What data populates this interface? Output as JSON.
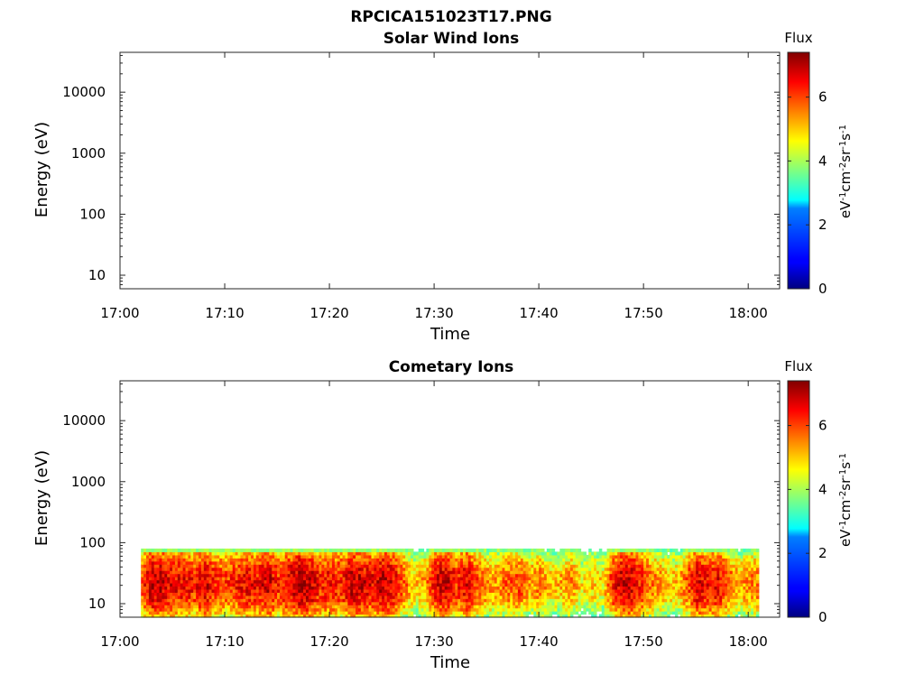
{
  "figure_title": "RPCICA151023T17.PNG",
  "chart_data": [
    {
      "type": "heatmap",
      "title": "Solar Wind Ions",
      "xlabel": "Time",
      "ylabel": "Energy (eV)",
      "x_ticks": [
        "17:00",
        "17:10",
        "17:20",
        "17:30",
        "17:40",
        "17:50",
        "18:00"
      ],
      "x_range": [
        "17:00",
        "18:03"
      ],
      "y_ticks": [
        "10",
        "100",
        "1000",
        "10000"
      ],
      "y_scale": "log",
      "y_range": [
        6,
        45000
      ],
      "colorbar": {
        "title": "Flux",
        "label": "eV-1cm-2sr-1s-1",
        "ticks": [
          "0",
          "2",
          "4",
          "6"
        ],
        "range": [
          0,
          7.4
        ]
      },
      "data": []
    },
    {
      "type": "heatmap",
      "title": "Cometary Ions",
      "xlabel": "Time",
      "ylabel": "Energy (eV)",
      "x_ticks": [
        "17:00",
        "17:10",
        "17:20",
        "17:30",
        "17:40",
        "17:50",
        "18:00"
      ],
      "x_range": [
        "17:00",
        "18:03"
      ],
      "y_ticks": [
        "10",
        "100",
        "1000",
        "10000"
      ],
      "y_scale": "log",
      "y_range": [
        6,
        45000
      ],
      "colorbar": {
        "title": "Flux",
        "label": "eV-1cm-2sr-1s-1",
        "ticks": [
          "0",
          "2",
          "4",
          "6"
        ],
        "range": [
          0,
          7.4
        ]
      },
      "data_time_range": [
        "17:02",
        "18:01"
      ],
      "data_energy_range_eV": [
        6,
        80
      ],
      "flux_profile": {
        "times": [
          "17:02",
          "17:03",
          "17:04",
          "17:05",
          "17:06",
          "17:07",
          "17:08",
          "17:09",
          "17:10",
          "17:11",
          "17:12",
          "17:13",
          "17:14",
          "17:15",
          "17:16",
          "17:17",
          "17:18",
          "17:19",
          "17:20",
          "17:21",
          "17:22",
          "17:23",
          "17:24",
          "17:25",
          "17:26",
          "17:27",
          "17:28",
          "17:29",
          "17:30",
          "17:31",
          "17:32",
          "17:33",
          "17:34",
          "17:35",
          "17:36",
          "17:37",
          "17:38",
          "17:39",
          "17:40",
          "17:41",
          "17:42",
          "17:43",
          "17:44",
          "17:45",
          "17:46",
          "17:47",
          "17:48",
          "17:49",
          "17:50",
          "17:51",
          "17:52",
          "17:53",
          "17:54",
          "17:55",
          "17:56",
          "17:57",
          "17:58",
          "17:59",
          "18:00",
          "18:01"
        ],
        "peak_flux": [
          6.0,
          7.0,
          6.8,
          6.5,
          6.6,
          6.3,
          6.8,
          6.2,
          6.0,
          6.3,
          6.6,
          6.4,
          6.9,
          6.2,
          6.6,
          7.1,
          6.9,
          6.3,
          6.5,
          6.3,
          6.9,
          6.8,
          6.5,
          7.0,
          6.6,
          5.8,
          5.0,
          5.3,
          6.6,
          6.9,
          6.2,
          6.7,
          6.0,
          5.5,
          5.4,
          5.8,
          6.0,
          5.3,
          5.6,
          5.0,
          5.2,
          5.6,
          4.7,
          5.0,
          4.8,
          6.4,
          6.9,
          6.7,
          6.0,
          5.5,
          5.2,
          5.0,
          5.8,
          6.8,
          6.4,
          6.6,
          5.8,
          5.2,
          5.5,
          5.6
        ]
      }
    }
  ]
}
